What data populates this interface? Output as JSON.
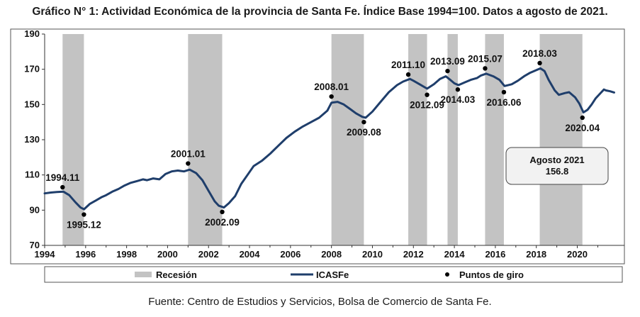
{
  "title": "Gráfico N° 1: Actividad Económica de la provincia de Santa Fe. Índice Base 1994=100. Datos a agosto de 2021.",
  "source": "Fuente: Centro de Estudios y Servicios, Bolsa de Comercio de Santa Fe.",
  "colors": {
    "line": "#1f3e6b",
    "recession": "#c3c3c3",
    "points": "#000000"
  },
  "chart_data": {
    "type": "line",
    "title": "Gráfico N° 1: Actividad Económica de la provincia de Santa Fe. Índice Base 1994=100. Datos a agosto de 2021.",
    "xlim": [
      1994,
      2022.3
    ],
    "ylim": [
      70,
      190
    ],
    "x_ticks": [
      "1994",
      "1996",
      "1998",
      "2000",
      "2002",
      "2004",
      "2006",
      "2008",
      "2010",
      "2012",
      "2014",
      "2016",
      "2018",
      "2020"
    ],
    "y_ticks": [
      "70",
      "90",
      "110",
      "130",
      "150",
      "170",
      "190"
    ],
    "grid": false,
    "legend_position": "bottom",
    "legend": {
      "recession": "Recesión",
      "series": "ICASFe",
      "points": "Puntos de giro"
    },
    "recessions": [
      [
        1994.875,
        1995.917
      ],
      [
        2001.0,
        2002.667
      ],
      [
        2008.0,
        2009.583
      ],
      [
        2011.75,
        2012.667
      ],
      [
        2013.667,
        2014.167
      ],
      [
        2015.5,
        2016.417
      ],
      [
        2018.167,
        2020.25
      ]
    ],
    "series": [
      {
        "name": "ICASFe",
        "points": [
          [
            1994.0,
            99.5
          ],
          [
            1994.3,
            100.0
          ],
          [
            1994.6,
            100.3
          ],
          [
            1994.92,
            100.5
          ],
          [
            1995.2,
            98.5
          ],
          [
            1995.5,
            94.5
          ],
          [
            1995.75,
            91.5
          ],
          [
            1995.92,
            90.5
          ],
          [
            1996.2,
            93.5
          ],
          [
            1996.5,
            95.5
          ],
          [
            1996.8,
            97.5
          ],
          [
            1997.0,
            98.5
          ],
          [
            1997.3,
            100.5
          ],
          [
            1997.6,
            102.0
          ],
          [
            1997.9,
            104.0
          ],
          [
            1998.2,
            105.5
          ],
          [
            1998.5,
            106.5
          ],
          [
            1998.8,
            107.5
          ],
          [
            1999.0,
            107.0
          ],
          [
            1999.3,
            108.0
          ],
          [
            1999.6,
            107.5
          ],
          [
            1999.9,
            110.5
          ],
          [
            2000.2,
            112.0
          ],
          [
            2000.5,
            112.5
          ],
          [
            2000.8,
            112.0
          ],
          [
            2001.08,
            113.0
          ],
          [
            2001.4,
            111.0
          ],
          [
            2001.7,
            107.0
          ],
          [
            2002.0,
            101.0
          ],
          [
            2002.3,
            95.0
          ],
          [
            2002.5,
            92.5
          ],
          [
            2002.75,
            91.5
          ],
          [
            2003.0,
            94.0
          ],
          [
            2003.3,
            98.0
          ],
          [
            2003.6,
            105.0
          ],
          [
            2003.9,
            110.0
          ],
          [
            2004.2,
            115.0
          ],
          [
            2004.6,
            118.0
          ],
          [
            2005.0,
            122.0
          ],
          [
            2005.4,
            126.5
          ],
          [
            2005.8,
            131.0
          ],
          [
            2006.2,
            134.5
          ],
          [
            2006.6,
            137.5
          ],
          [
            2007.0,
            140.0
          ],
          [
            2007.4,
            142.5
          ],
          [
            2007.8,
            146.5
          ],
          [
            2008.0,
            151.0
          ],
          [
            2008.3,
            151.5
          ],
          [
            2008.6,
            150.0
          ],
          [
            2008.9,
            147.5
          ],
          [
            2009.2,
            145.0
          ],
          [
            2009.5,
            143.0
          ],
          [
            2009.67,
            142.5
          ],
          [
            2010.0,
            146.0
          ],
          [
            2010.4,
            151.5
          ],
          [
            2010.8,
            157.0
          ],
          [
            2011.2,
            161.0
          ],
          [
            2011.5,
            163.0
          ],
          [
            2011.83,
            164.5
          ],
          [
            2012.0,
            163.5
          ],
          [
            2012.3,
            161.5
          ],
          [
            2012.67,
            159.0
          ],
          [
            2013.0,
            161.5
          ],
          [
            2013.3,
            164.5
          ],
          [
            2013.58,
            166.0
          ],
          [
            2013.8,
            164.0
          ],
          [
            2014.0,
            162.0
          ],
          [
            2014.2,
            161.0
          ],
          [
            2014.5,
            162.5
          ],
          [
            2014.8,
            164.0
          ],
          [
            2015.1,
            165.0
          ],
          [
            2015.3,
            166.5
          ],
          [
            2015.55,
            167.5
          ],
          [
            2015.9,
            166.0
          ],
          [
            2016.2,
            164.0
          ],
          [
            2016.45,
            160.5
          ],
          [
            2016.8,
            161.5
          ],
          [
            2017.1,
            163.5
          ],
          [
            2017.4,
            166.0
          ],
          [
            2017.7,
            168.0
          ],
          [
            2018.0,
            169.5
          ],
          [
            2018.2,
            170.5
          ],
          [
            2018.4,
            169.0
          ],
          [
            2018.6,
            164.0
          ],
          [
            2018.9,
            158.0
          ],
          [
            2019.1,
            155.5
          ],
          [
            2019.4,
            156.5
          ],
          [
            2019.6,
            157.0
          ],
          [
            2019.9,
            154.0
          ],
          [
            2020.1,
            150.5
          ],
          [
            2020.3,
            145.5
          ],
          [
            2020.5,
            147.0
          ],
          [
            2020.7,
            150.0
          ],
          [
            2020.9,
            153.5
          ],
          [
            2021.1,
            156.0
          ],
          [
            2021.3,
            158.5
          ],
          [
            2021.4,
            158.0
          ],
          [
            2021.6,
            157.5
          ],
          [
            2021.8,
            156.8
          ]
        ]
      }
    ],
    "turning_points": [
      {
        "label": "1994.11",
        "x": 1994.875,
        "y": 103.0,
        "label_pos": "above"
      },
      {
        "label": "1995.12",
        "x": 1995.917,
        "y": 87.5,
        "label_pos": "below"
      },
      {
        "label": "2001.01",
        "x": 2001.0,
        "y": 116.5,
        "label_pos": "above"
      },
      {
        "label": "2002.09",
        "x": 2002.667,
        "y": 89.0,
        "label_pos": "below"
      },
      {
        "label": "2008.01",
        "x": 2008.0,
        "y": 154.5,
        "label_pos": "above"
      },
      {
        "label": "2009.08",
        "x": 2009.583,
        "y": 140.0,
        "label_pos": "below"
      },
      {
        "label": "2011.10",
        "x": 2011.75,
        "y": 167.0,
        "label_pos": "above"
      },
      {
        "label": "2012.09",
        "x": 2012.667,
        "y": 155.5,
        "label_pos": "below"
      },
      {
        "label": "2013.09",
        "x": 2013.667,
        "y": 169.0,
        "label_pos": "above"
      },
      {
        "label": "2014.03",
        "x": 2014.167,
        "y": 158.5,
        "label_pos": "below"
      },
      {
        "label": "2015.07",
        "x": 2015.5,
        "y": 170.5,
        "label_pos": "above"
      },
      {
        "label": "2016.06",
        "x": 2016.417,
        "y": 157.0,
        "label_pos": "below"
      },
      {
        "label": "2018.03",
        "x": 2018.167,
        "y": 173.5,
        "label_pos": "above"
      },
      {
        "label": "2020.04",
        "x": 2020.25,
        "y": 142.5,
        "label_pos": "below"
      }
    ],
    "annotation": {
      "line1": "Agosto 2021",
      "line2": "156.8"
    }
  }
}
